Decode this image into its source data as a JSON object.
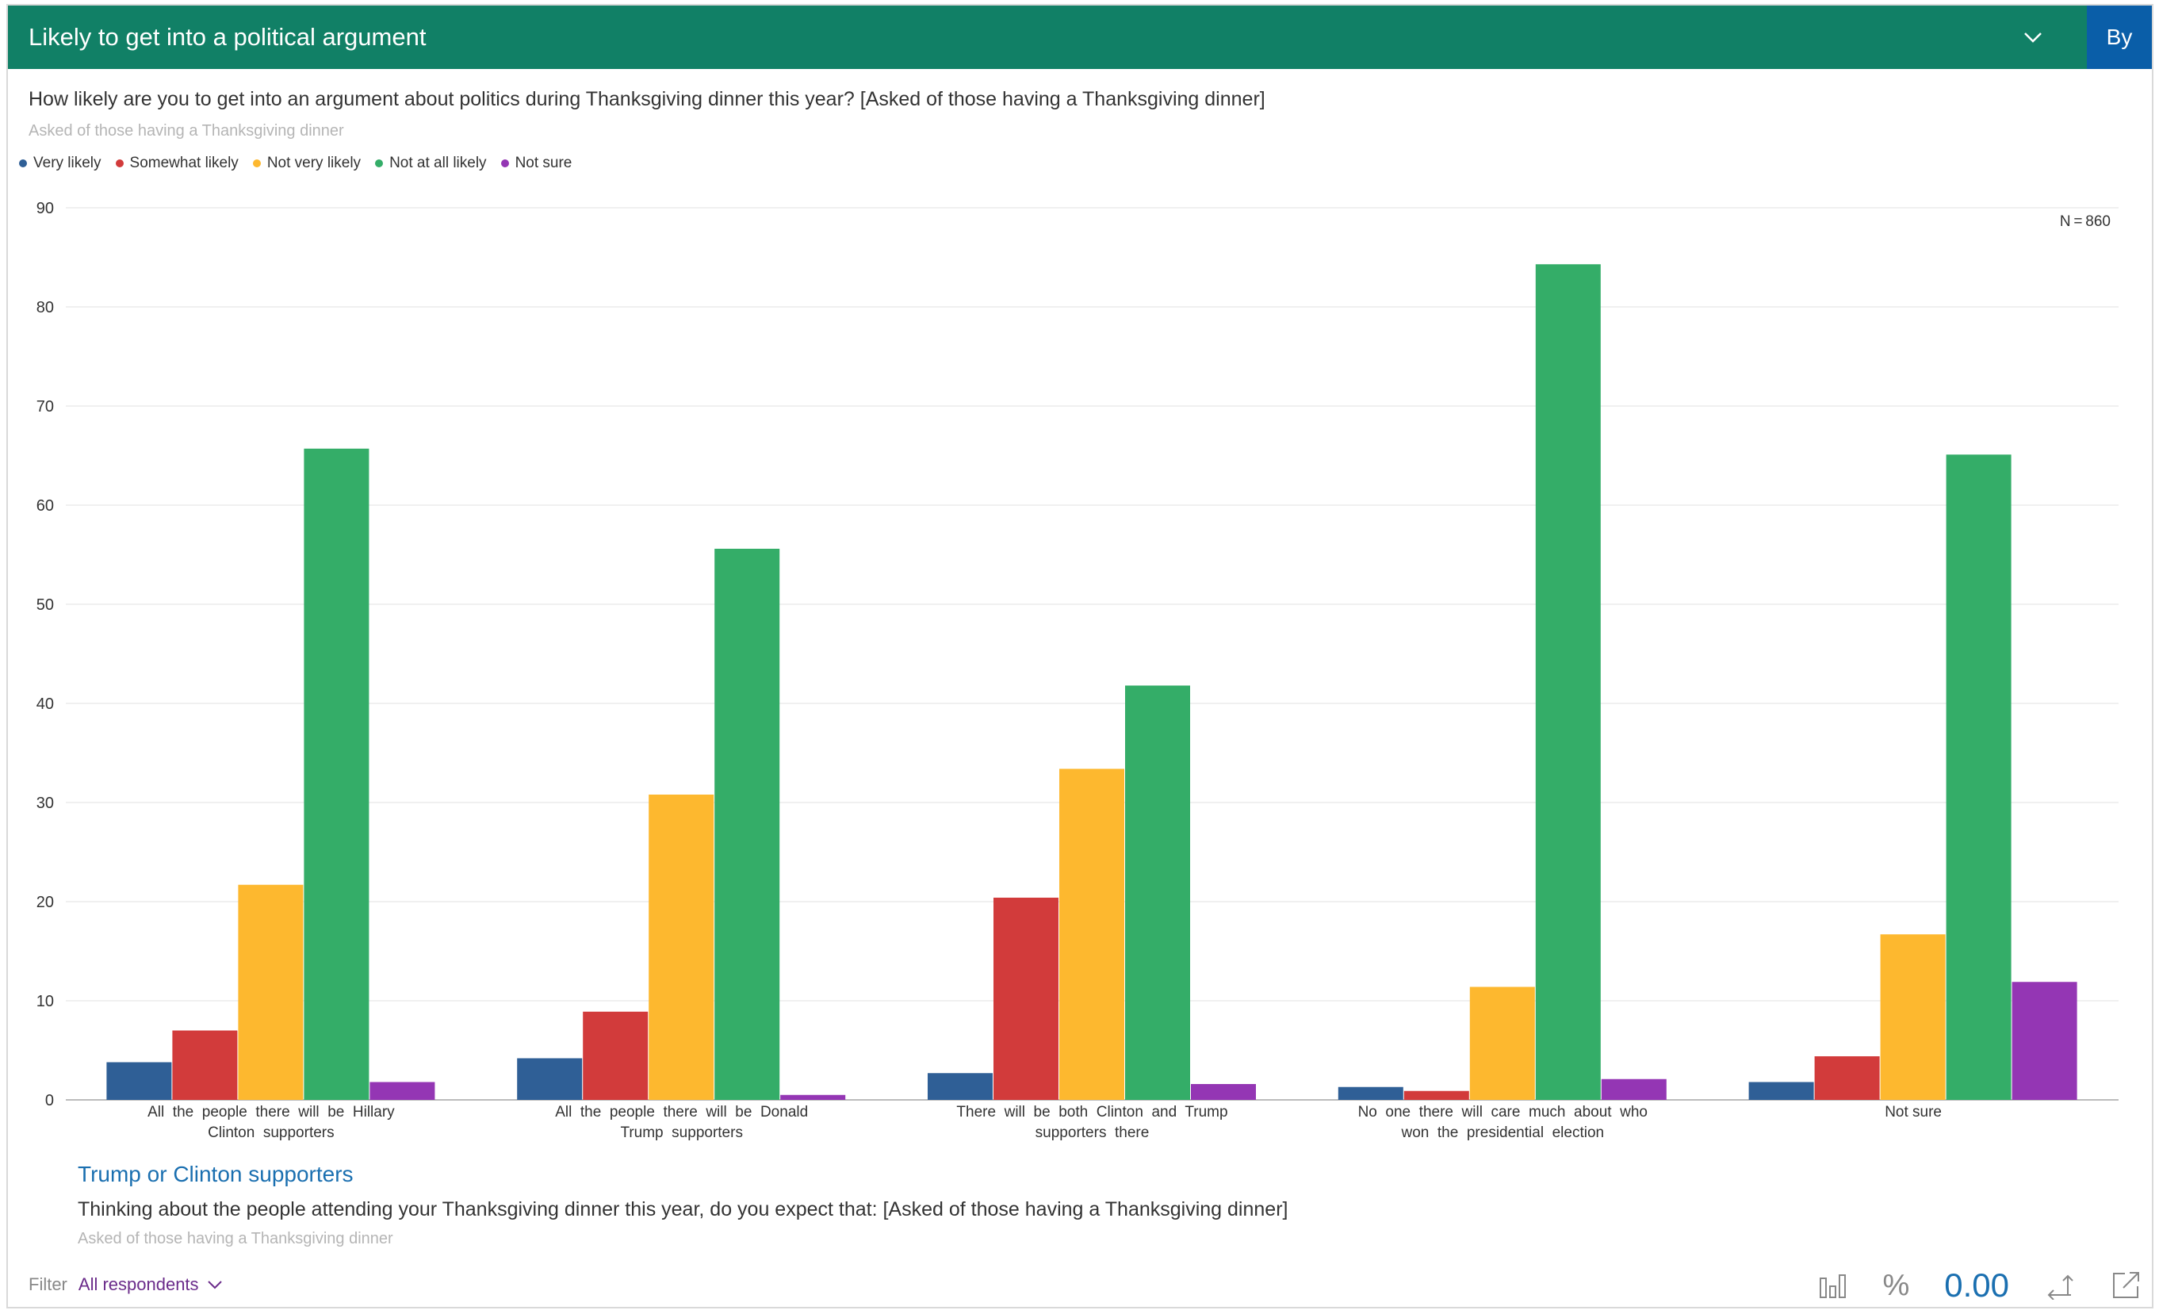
{
  "header": {
    "title": "Likely to get into a political argument",
    "by_label": "By"
  },
  "question": "How likely are you to get into an argument about politics during Thanksgiving dinner this year? [Asked of those having a Thanksgiving dinner]",
  "subnote": "Asked of those having a Thanksgiving dinner",
  "n_label": "N = 860",
  "legend": [
    {
      "name": "Very likely",
      "color": "#2f5f96"
    },
    {
      "name": "Somewhat likely",
      "color": "#d23b3b"
    },
    {
      "name": "Not very likely",
      "color": "#fdb82f"
    },
    {
      "name": "Not at all likely",
      "color": "#34ad68"
    },
    {
      "name": "Not sure",
      "color": "#9436b4"
    }
  ],
  "chart_data": {
    "type": "bar",
    "title": "Likely to get into a political argument",
    "ylim": [
      0,
      90
    ],
    "yticks": [
      0,
      10,
      20,
      30,
      40,
      50,
      60,
      70,
      80,
      90
    ],
    "categories": [
      [
        "All  the  people  there  will  be  Hillary",
        "Clinton  supporters"
      ],
      [
        "All  the  people  there  will  be  Donald",
        "Trump  supporters"
      ],
      [
        "There  will  be  both  Clinton  and  Trump",
        "supporters  there"
      ],
      [
        "No  one  there  will  care  much  about  who",
        "won  the  presidential  election"
      ],
      [
        "Not sure"
      ]
    ],
    "series": [
      {
        "name": "Very likely",
        "color": "#2f5f96",
        "values": [
          3.8,
          4.2,
          2.7,
          1.3,
          1.8
        ]
      },
      {
        "name": "Somewhat likely",
        "color": "#d23b3b",
        "values": [
          7.0,
          8.9,
          20.4,
          0.9,
          4.4
        ]
      },
      {
        "name": "Not very likely",
        "color": "#fdb82f",
        "values": [
          21.7,
          30.8,
          33.4,
          11.4,
          16.7
        ]
      },
      {
        "name": "Not at all likely",
        "color": "#34ad68",
        "values": [
          65.7,
          55.6,
          41.8,
          84.3,
          65.1
        ]
      },
      {
        "name": "Not sure",
        "color": "#9436b4",
        "values": [
          1.8,
          0.5,
          1.6,
          2.1,
          11.9
        ]
      }
    ]
  },
  "sub_link": "Trump or Clinton supporters",
  "question2": "Thinking about the people attending your Thanksgiving dinner this year, do you expect that: [Asked of those having a Thanksgiving dinner]",
  "subnote2": "Asked of those having a Thanksgiving dinner",
  "filter": {
    "label": "Filter",
    "value": "All respondents"
  },
  "tools": {
    "percent": "%",
    "decimals": "0.00"
  }
}
